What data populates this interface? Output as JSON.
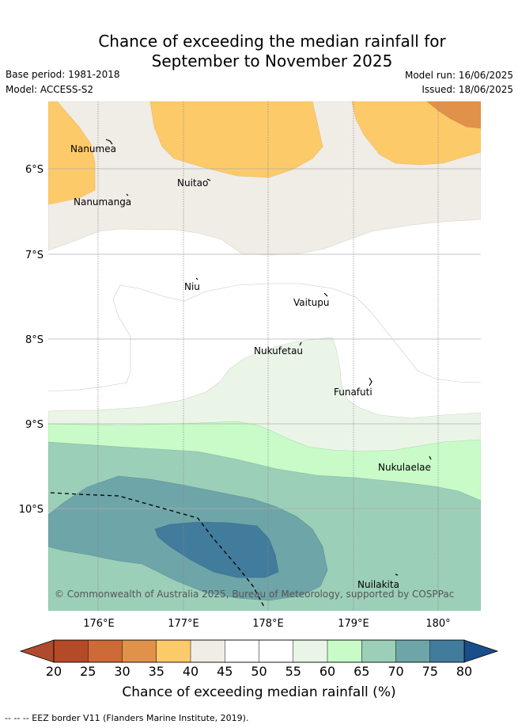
{
  "title_line1": "Chance of exceeding the median rainfall for",
  "title_line2": "September to November 2025",
  "base_period": "Base period: 1981-2018",
  "model": "Model: ACCESS-S2",
  "model_run": "Model run: 16/06/2025",
  "issued": "Issued: 18/06/2025",
  "copyright": "© Commonwealth of Australia 2025, Bureau of Meteorology, supported by COSPPac",
  "lat_ticks": [
    "6°S",
    "7°S",
    "8°S",
    "9°S",
    "10°S"
  ],
  "lon_ticks": [
    "176°E",
    "177°E",
    "178°E",
    "179°E",
    "180°"
  ],
  "islands": [
    {
      "name": "Nanumea"
    },
    {
      "name": "Nuitao"
    },
    {
      "name": "Nanumanga"
    },
    {
      "name": "Niu"
    },
    {
      "name": "Vaitupu"
    },
    {
      "name": "Nukufetau"
    },
    {
      "name": "Funafuti"
    },
    {
      "name": "Nukulaelae"
    },
    {
      "name": "Nuilakita"
    }
  ],
  "colorbar": {
    "ticks": [
      "20",
      "25",
      "30",
      "35",
      "40",
      "45",
      "50",
      "55",
      "60",
      "65",
      "70",
      "75",
      "80"
    ],
    "colors": [
      "#b54a28",
      "#cd6a38",
      "#e0924a",
      "#fdca6a",
      "#f0ece6",
      "#ffffff",
      "#ffffff",
      "#eaf5e8",
      "#c8fbc8",
      "#9ccfb8",
      "#6ea5a8",
      "#427c9c"
    ],
    "under_color": "#b04a2e",
    "over_color": "#1a4e8a",
    "label": "Chance of exceeding median rainfall (%)"
  },
  "legend_note": "-- -- -- EEZ border V11 (Flanders Marine Institute, 2019)."
}
